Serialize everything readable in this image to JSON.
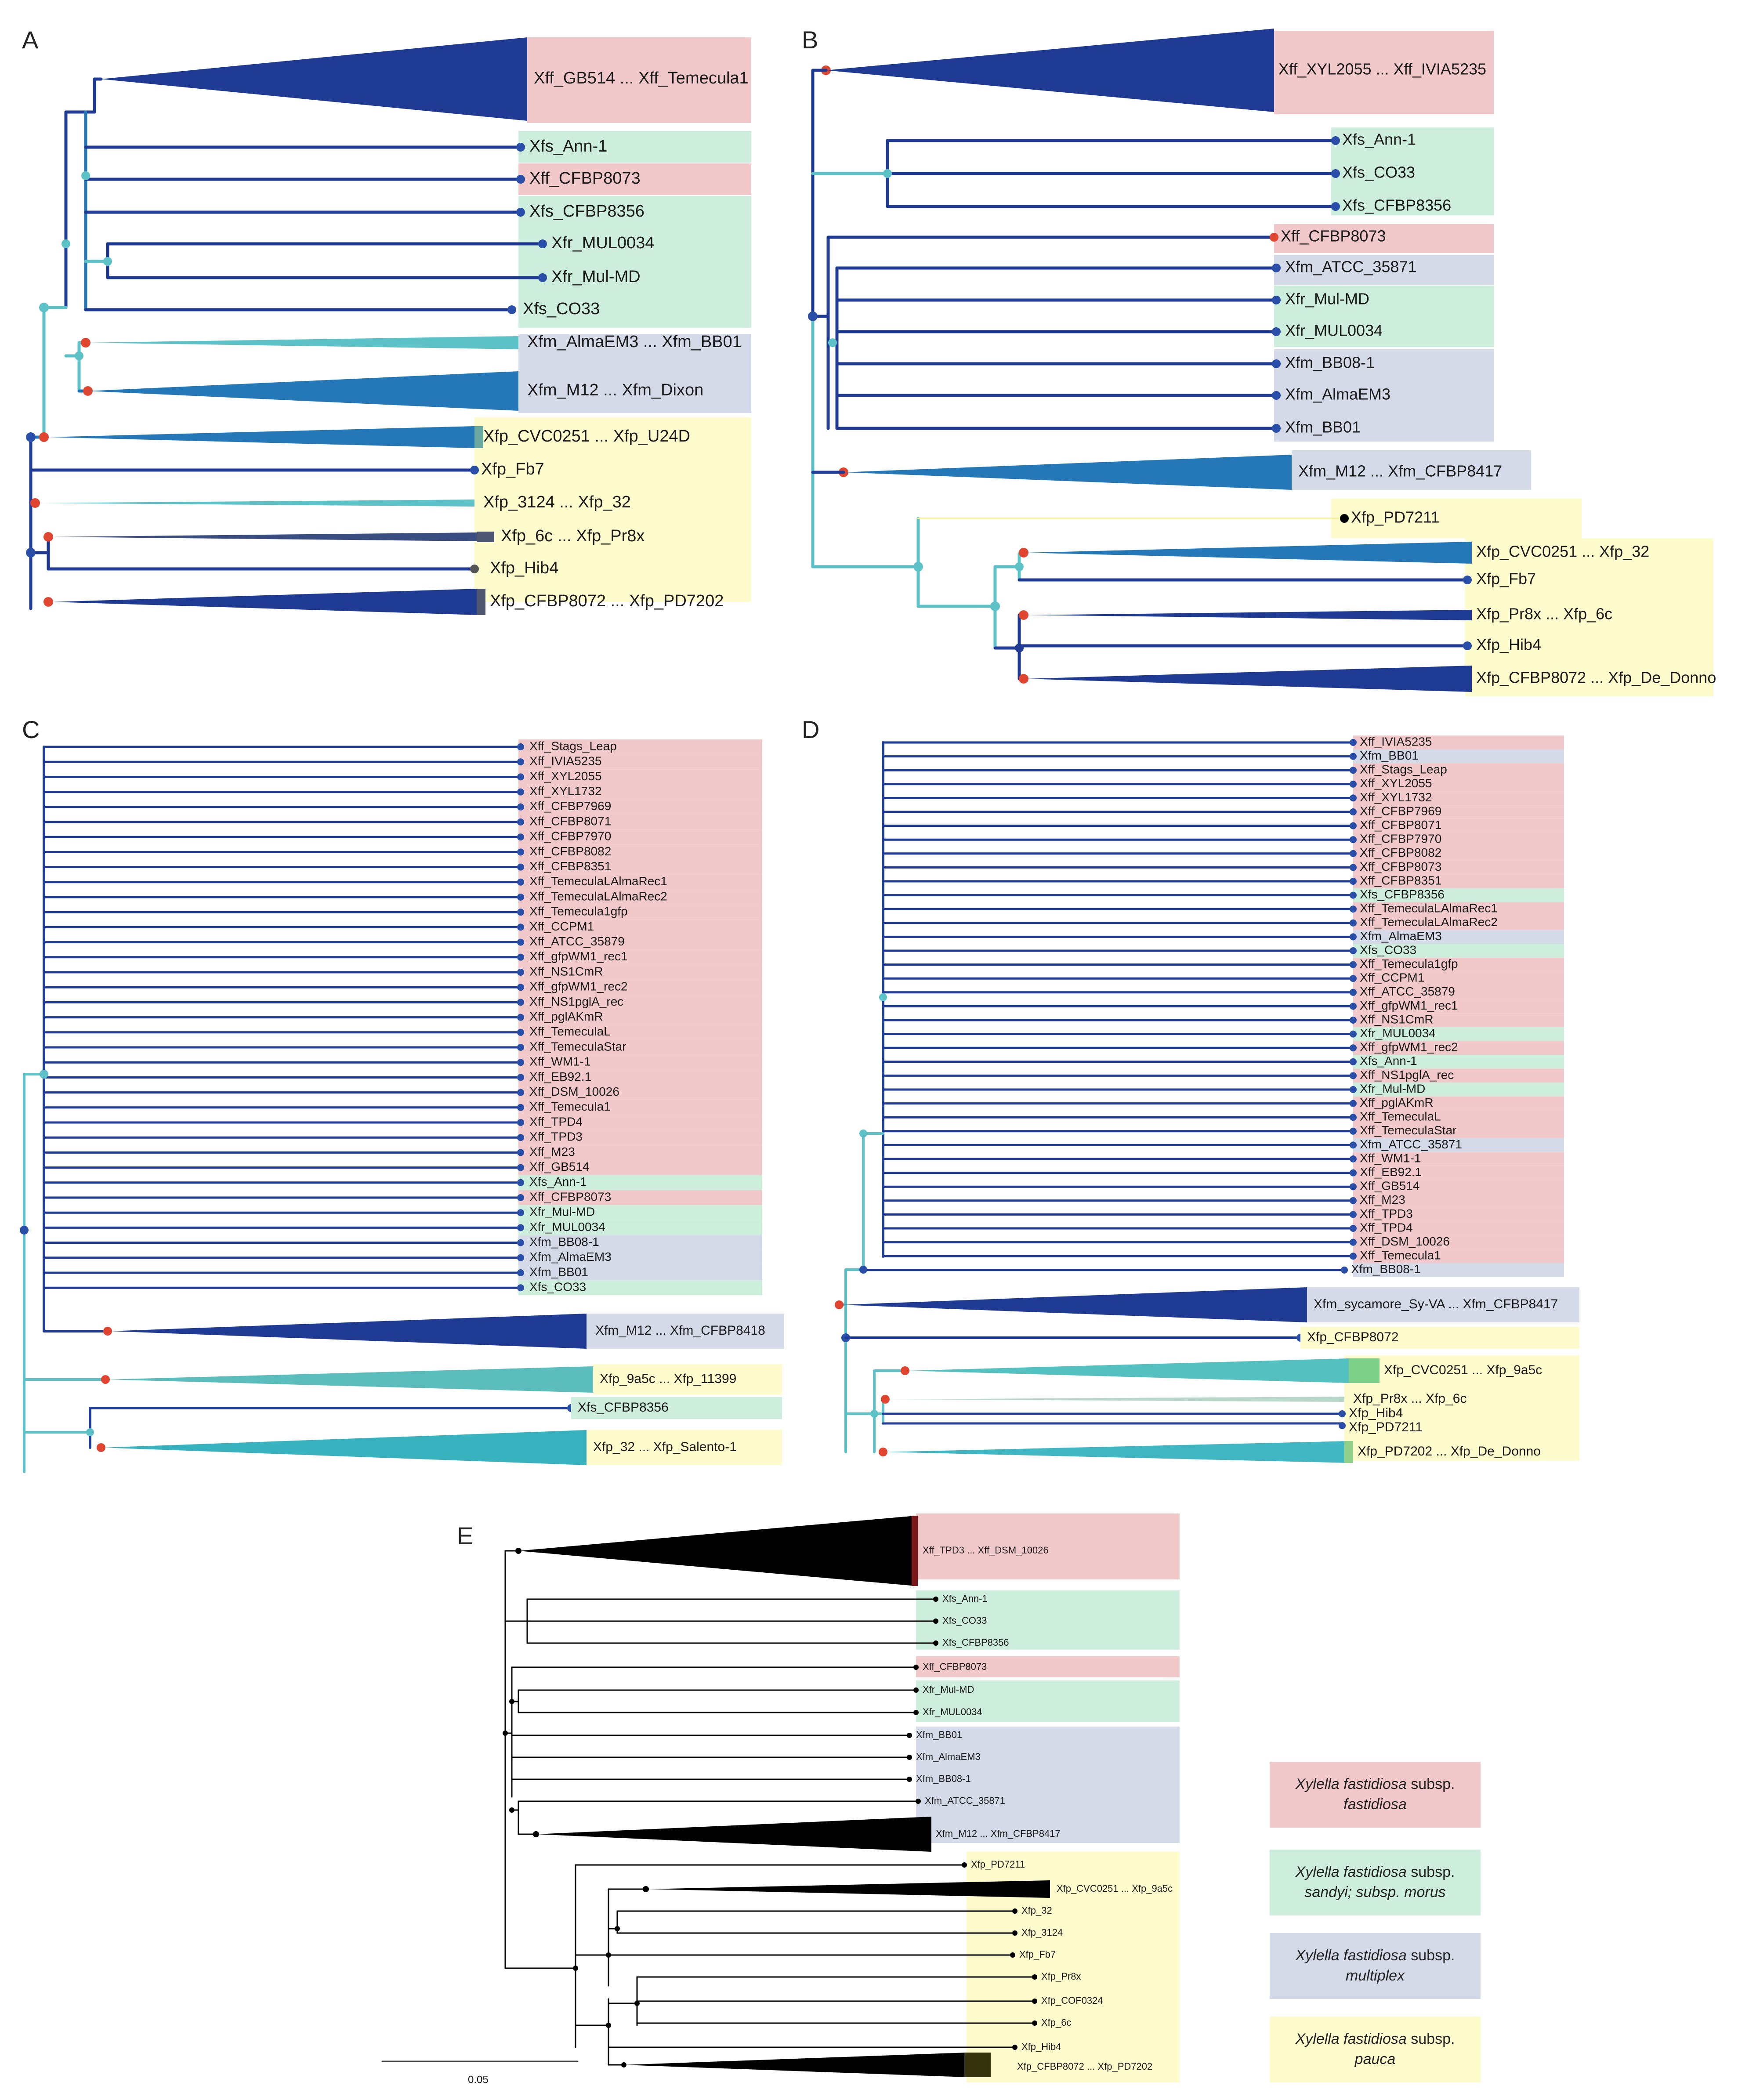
{
  "colors": {
    "fastidiosa": "#f2c9cb",
    "sandyi_morus": "#cdeedd",
    "multiplex": "#d5dae8",
    "pauca": "#fefccd",
    "branch_dark": "#1f3a93",
    "branch_mid": "#2478b8",
    "branch_light": "#5cc2c8",
    "node_red": "#e0452f",
    "node_blue": "#2a4fa8",
    "node_black": "#000000"
  },
  "panels": {
    "A": {
      "letter": "A",
      "collapsed": [
        "Xff_GB514 ... Xff_Temecula1",
        "Xfm_AlmaEM3 ... Xfm_BB01",
        "Xfm_M12 ... Xfm_Dixon",
        "Xfp_CVC0251 ... Xfp_U24D",
        "Xfp_3124 ... Xfp_32",
        "Xfp_6c ... Xfp_Pr8x",
        "Xfp_CFBP8072 ... Xfp_PD7202"
      ],
      "leaves": [
        "Xfs_Ann-1",
        "Xff_CFBP8073",
        "Xfs_CFBP8356",
        "Xfr_MUL0034",
        "Xfr_Mul-MD",
        "Xfs_CO33",
        "Xfp_Fb7",
        "Xfp_Hib4"
      ]
    },
    "B": {
      "letter": "B",
      "collapsed": [
        "Xff_XYL2055 ... Xff_IVIA5235",
        "Xfm_M12 ... Xfm_CFBP8417",
        "Xfp_CVC0251 ... Xfp_32",
        "Xfp_Pr8x ... Xfp_6c",
        "Xfp_CFBP8072 ... Xfp_De_Donno"
      ],
      "leaves": [
        "Xfs_Ann-1",
        "Xfs_CO33",
        "Xfs_CFBP8356",
        "Xff_CFBP8073",
        "Xfm_ATCC_35871",
        "Xfr_Mul-MD",
        "Xfr_MUL0034",
        "Xfm_BB08-1",
        "Xfm_AlmaEM3",
        "Xfm_BB01",
        "Xfp_PD7211",
        "Xfp_Fb7",
        "Xfp_Hib4"
      ]
    },
    "C": {
      "letter": "C",
      "leaves": [
        "Xff_Stags_Leap",
        "Xff_IVIA5235",
        "Xff_XYL2055",
        "Xff_XYL1732",
        "Xff_CFBP7969",
        "Xff_CFBP8071",
        "Xff_CFBP7970",
        "Xff_CFBP8082",
        "Xff_CFBP8351",
        "Xff_TemeculaLAlmaRec1",
        "Xff_TemeculaLAlmaRec2",
        "Xff_Temecula1gfp",
        "Xff_CCPM1",
        "Xff_ATCC_35879",
        "Xff_gfpWM1_rec1",
        "Xff_NS1CmR",
        "Xff_gfpWM1_rec2",
        "Xff_NS1pglA_rec",
        "Xff_pglAKmR",
        "Xff_TemeculaL",
        "Xff_TemeculaStar",
        "Xff_WM1-1",
        "Xff_EB92.1",
        "Xff_DSM_10026",
        "Xff_Temecula1",
        "Xff_TPD4",
        "Xff_TPD3",
        "Xff_M23",
        "Xff_GB514",
        "Xfs_Ann-1",
        "Xff_CFBP8073",
        "Xfr_Mul-MD",
        "Xfr_MUL0034",
        "Xfm_BB08-1",
        "Xfm_AlmaEM3",
        "Xfm_BB01",
        "Xfs_CO33"
      ],
      "collapsed": [
        "Xfm_M12 ... Xfm_CFBP8418",
        "Xfp_9a5c ... Xfp_11399",
        "Xfp_32 ... Xfp_Salento-1"
      ],
      "extra_leaf": "Xfs_CFBP8356"
    },
    "D": {
      "letter": "D",
      "leaves": [
        "Xff_IVIA5235",
        "Xfm_BB01",
        "Xff_Stags_Leap",
        "Xff_XYL2055",
        "Xff_XYL1732",
        "Xff_CFBP7969",
        "Xff_CFBP8071",
        "Xff_CFBP7970",
        "Xff_CFBP8082",
        "Xff_CFBP8073",
        "Xff_CFBP8351",
        "Xfs_CFBP8356",
        "Xff_TemeculaLAlmaRec1",
        "Xff_TemeculaLAlmaRec2",
        "Xfm_AlmaEM3",
        "Xfs_CO33",
        "Xff_Temecula1gfp",
        "Xff_CCPM1",
        "Xff_ATCC_35879",
        "Xff_gfpWM1_rec1",
        "Xff_NS1CmR",
        "Xfr_MUL0034",
        "Xff_gfpWM1_rec2",
        "Xfs_Ann-1",
        "Xff_NS1pglA_rec",
        "Xfr_Mul-MD",
        "Xff_pglAKmR",
        "Xff_TemeculaL",
        "Xff_TemeculaStar",
        "Xfm_ATCC_35871",
        "Xff_WM1-1",
        "Xff_EB92.1",
        "Xff_GB514",
        "Xff_M23",
        "Xff_TPD3",
        "Xff_TPD4",
        "Xff_DSM_10026",
        "Xff_Temecula1",
        "Xfm_BB08-1"
      ],
      "collapsed": [
        "Xfm_sycamore_Sy-VA ... Xfm_CFBP8417",
        "Xfp_CVC0251 ... Xfp_9a5c",
        "Xfp_Pr8x ... Xfp_6c",
        "Xfp_PD7202 ... Xfp_De_Donno"
      ],
      "extra_leaves": [
        "Xfp_CFBP8072",
        "Xfp_Hib4",
        "Xfp_PD7211"
      ]
    },
    "E": {
      "letter": "E",
      "collapsed": [
        "Xff_TPD3 ... Xff_DSM_10026",
        "Xfm_M12 ... Xfm_CFBP8417",
        "Xfp_CVC0251 ... Xfp_9a5c",
        "Xfp_CFBP8072 ... Xfp_PD7202"
      ],
      "leaves": [
        "Xfs_Ann-1",
        "Xfs_CO33",
        "Xfs_CFBP8356",
        "Xff_CFBP8073",
        "Xfr_Mul-MD",
        "Xfr_MUL0034",
        "Xfm_BB01",
        "Xfm_AlmaEM3",
        "Xfm_BB08-1",
        "Xfm_ATCC_35871",
        "Xfp_PD7211",
        "Xfp_32",
        "Xfp_3124",
        "Xfp_Fb7",
        "Xfp_Pr8x",
        "Xfp_COF0324",
        "Xfp_6c",
        "Xfp_Hib4"
      ],
      "scale_label": "0.05"
    }
  },
  "legend": [
    {
      "italic1": "Xylella fastidiosa",
      "plain1": " subsp.",
      "line2": "fastidiosa",
      "color": "#f2c9cb"
    },
    {
      "italic1": "Xylella fastidiosa",
      "plain1": " subsp.",
      "line2": "sandyi; subsp. morus",
      "color": "#cdeedd"
    },
    {
      "italic1": "Xylella fastidiosa",
      "plain1": " subsp.",
      "line2": "multiplex",
      "color": "#d5dae8"
    },
    {
      "italic1": "Xylella fastidiosa",
      "plain1": " subsp.",
      "line2": "pauca",
      "color": "#fefccd"
    }
  ]
}
